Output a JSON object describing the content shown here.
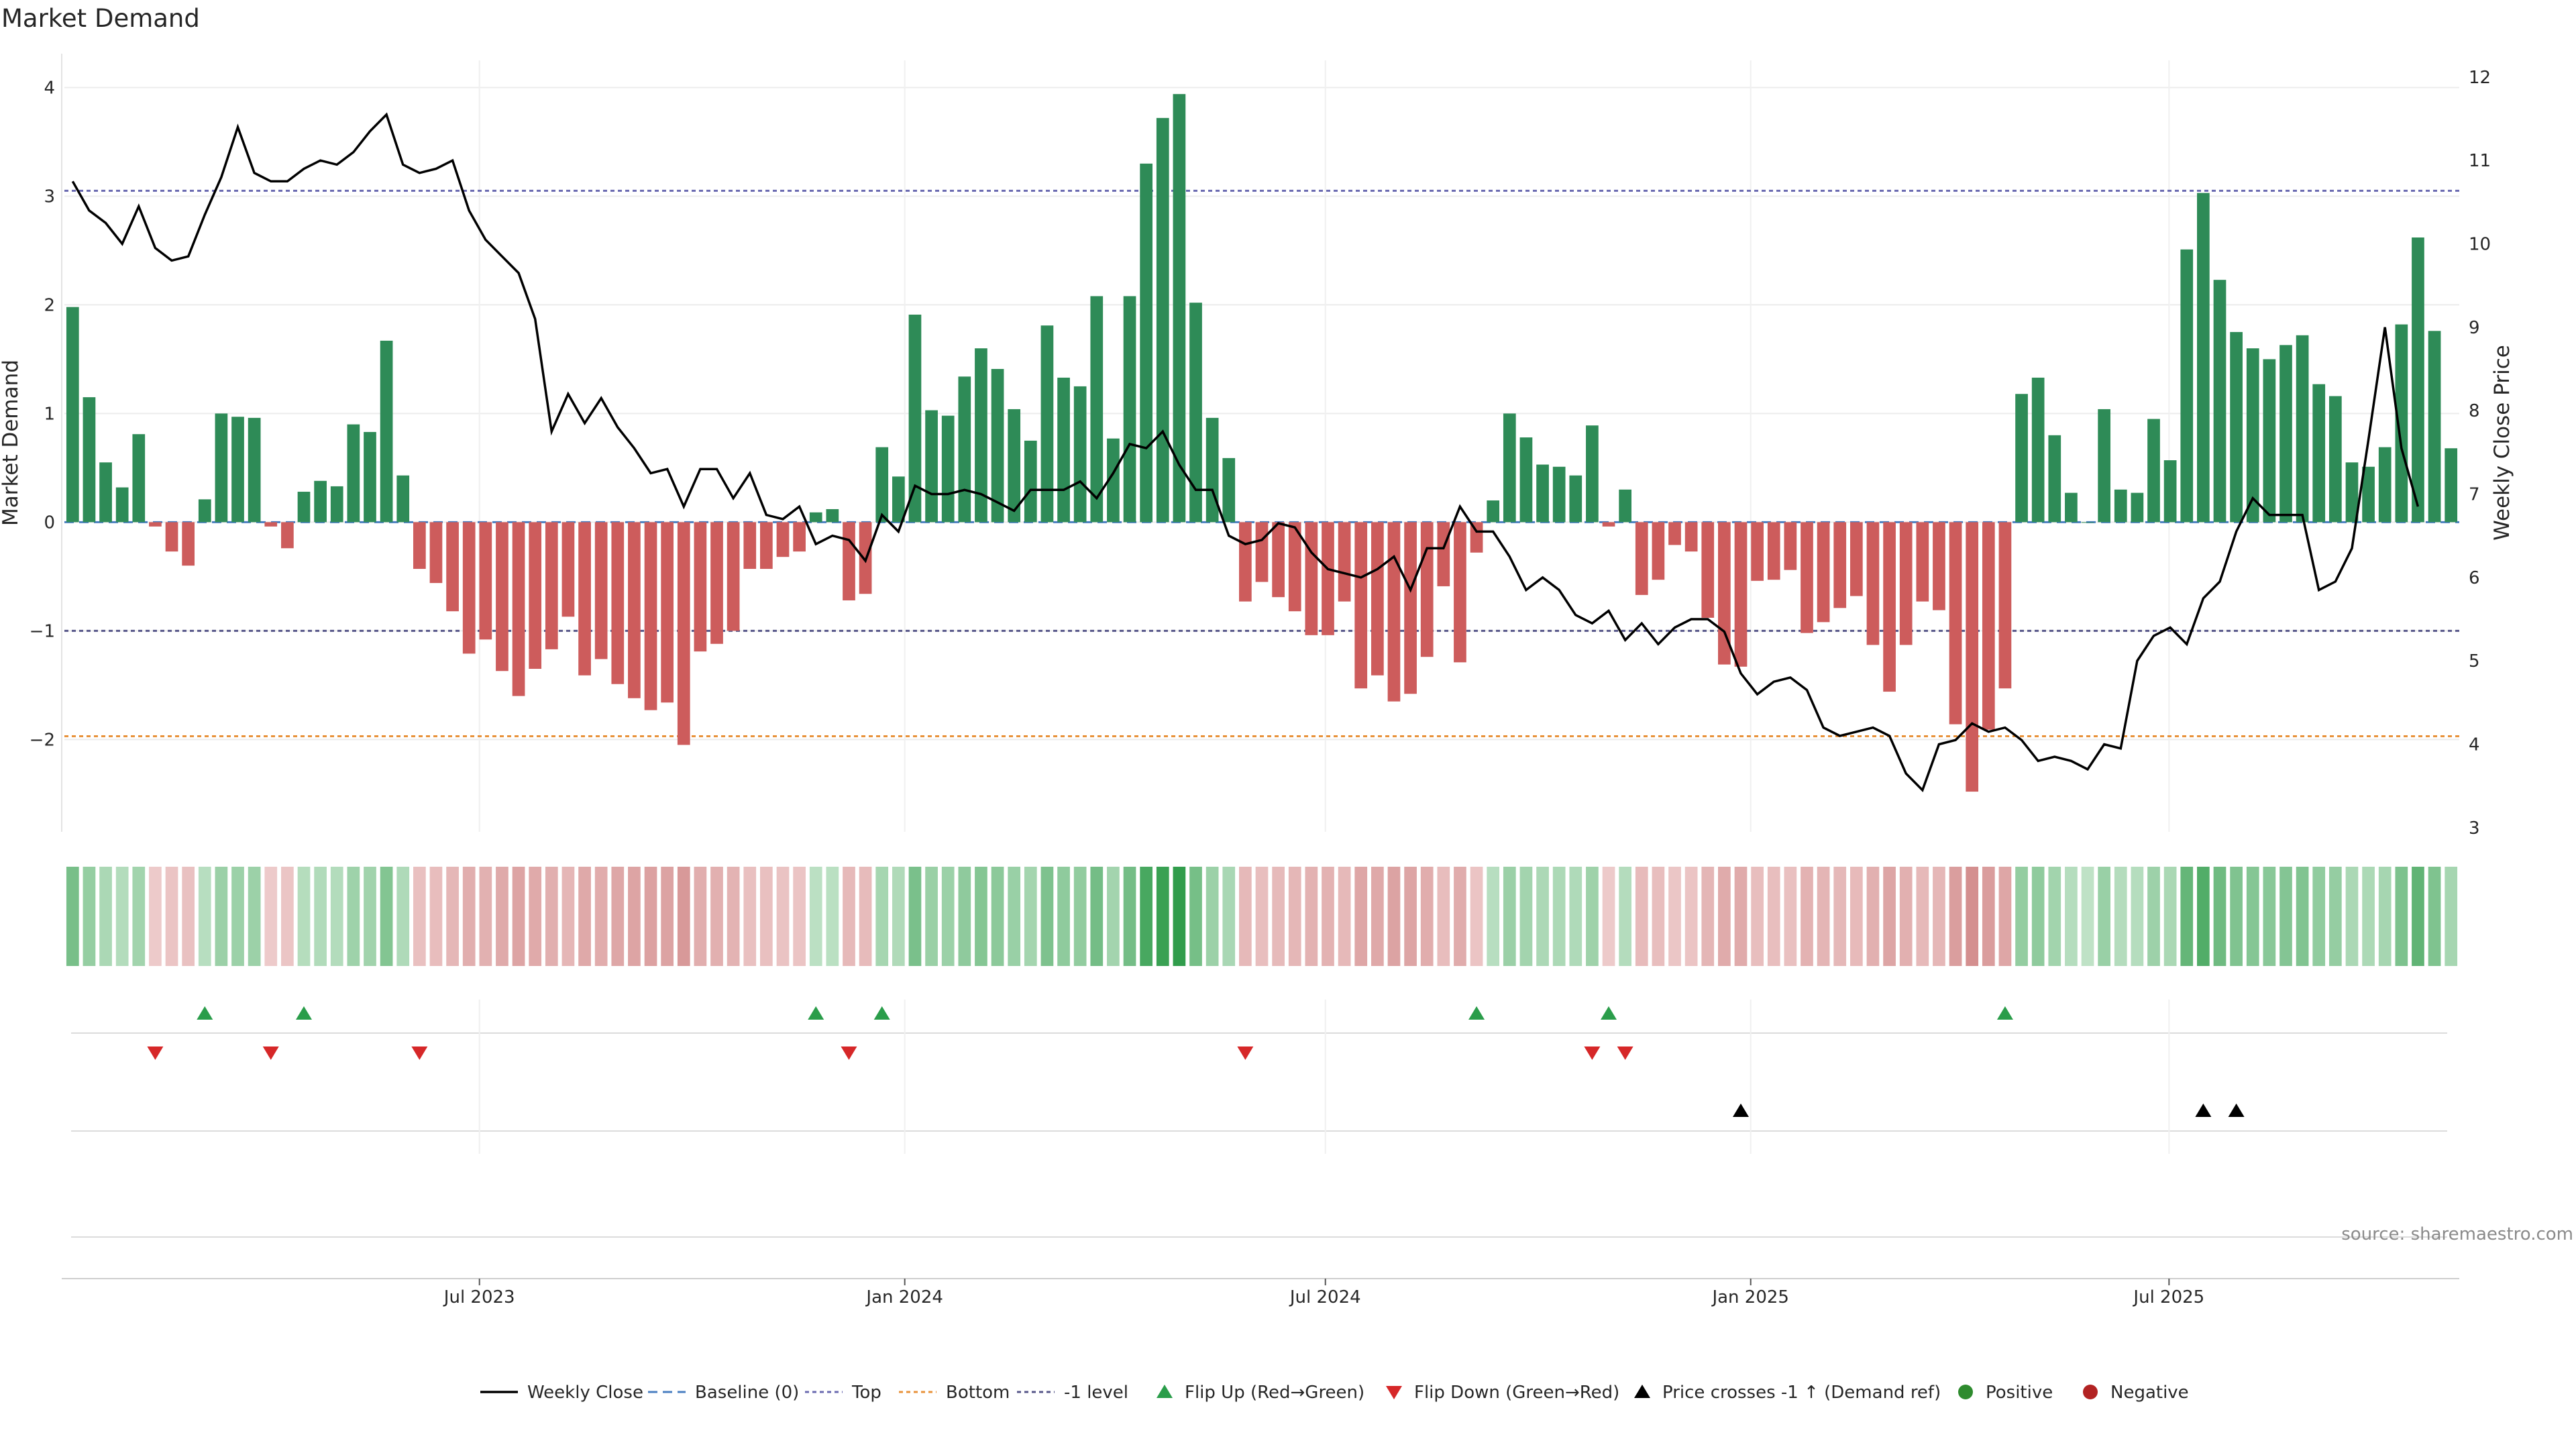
{
  "chart_data": {
    "type": "bar",
    "title": "Market Demand",
    "ylabel": "Market Demand",
    "y2label": "Weekly Close Price",
    "ylim": [
      -2.85,
      4.25
    ],
    "y2lim": [
      2.95,
      12.2
    ],
    "yticks": [
      4,
      3,
      2,
      1,
      0,
      -1,
      -2
    ],
    "y2ticks": [
      12,
      11,
      10,
      9,
      8,
      7,
      6,
      5,
      4,
      3
    ],
    "levels": {
      "top": 3.05,
      "bottom": -1.97,
      "minus_one": -1.0,
      "baseline": 0
    },
    "dates": {
      "first_week": "2023-01-06",
      "last_week": "2025-10-31",
      "x_ticks": [
        "Jul 2023",
        "Jan 2024",
        "Jul 2024",
        "Jan 2025",
        "Jul 2025"
      ]
    },
    "bar_colors": {
      "positive": "#2e8b57",
      "negative": "#cd5c5c"
    },
    "series": [
      {
        "name": "Market Demand",
        "values": [
          1.98,
          1.15,
          0.55,
          0.32,
          0.81,
          -0.04,
          -0.27,
          -0.4,
          0.21,
          1.0,
          0.97,
          0.96,
          -0.04,
          -0.24,
          0.28,
          0.38,
          0.33,
          0.9,
          0.83,
          1.67,
          0.43,
          -0.43,
          -0.56,
          -0.82,
          -1.21,
          -1.08,
          -1.37,
          -1.6,
          -1.35,
          -1.17,
          -0.87,
          -1.41,
          -1.26,
          -1.49,
          -1.62,
          -1.73,
          -1.66,
          -2.05,
          -1.19,
          -1.12,
          -1.0,
          -0.43,
          -0.43,
          -0.32,
          -0.27,
          0.09,
          0.12,
          -0.72,
          -0.66,
          0.69,
          0.42,
          1.91,
          1.03,
          0.98,
          1.34,
          1.6,
          1.41,
          1.04,
          0.75,
          1.81,
          1.33,
          1.25,
          2.08,
          0.77,
          2.08,
          3.3,
          3.72,
          3.94,
          2.02,
          0.96,
          0.59,
          -0.73,
          -0.55,
          -0.69,
          -0.82,
          -1.04,
          -1.04,
          -0.73,
          -1.53,
          -1.41,
          -1.65,
          -1.58,
          -1.24,
          -0.59,
          -1.29,
          -0.28,
          0.2,
          1.0,
          0.78,
          0.53,
          0.51,
          0.43,
          0.89,
          -0.04,
          0.3,
          -0.67,
          -0.53,
          -0.21,
          -0.27,
          -0.88,
          -1.31,
          -1.33,
          -0.54,
          -0.53,
          -0.44,
          -1.02,
          -0.92,
          -0.79,
          -0.68,
          -1.13,
          -1.56,
          -1.13,
          -0.73,
          -0.81,
          -1.86,
          -2.48,
          -1.91,
          -1.53,
          1.18,
          1.33,
          0.8,
          0.27,
          0.0,
          1.04,
          0.3,
          0.27,
          0.95,
          0.57,
          2.51,
          3.03,
          2.23,
          1.75,
          1.6,
          1.5,
          1.63,
          1.72,
          1.27,
          1.16,
          0.55,
          0.51,
          0.69,
          1.82,
          2.62,
          1.76,
          0.68
        ]
      },
      {
        "name": "Weekly Close",
        "values": [
          10.75,
          10.4,
          10.25,
          10.0,
          10.45,
          9.95,
          9.8,
          9.85,
          10.35,
          10.8,
          11.4,
          10.85,
          10.75,
          10.75,
          10.9,
          11.0,
          10.95,
          11.1,
          11.35,
          11.55,
          10.95,
          10.85,
          10.9,
          11.0,
          10.4,
          10.05,
          9.85,
          9.65,
          9.1,
          7.75,
          8.2,
          7.85,
          8.15,
          7.8,
          7.55,
          7.25,
          7.3,
          6.85,
          7.3,
          7.3,
          6.95,
          7.25,
          6.75,
          6.7,
          6.85,
          6.4,
          6.5,
          6.45,
          6.2,
          6.75,
          6.55,
          7.1,
          7.0,
          7.0,
          7.05,
          7.0,
          6.9,
          6.8,
          7.05,
          7.05,
          7.05,
          7.15,
          6.95,
          7.25,
          7.6,
          7.55,
          7.75,
          7.35,
          7.05,
          7.05,
          6.5,
          6.4,
          6.45,
          6.65,
          6.6,
          6.3,
          6.1,
          6.05,
          6.0,
          6.1,
          6.25,
          5.85,
          6.35,
          6.35,
          6.85,
          6.55,
          6.55,
          6.25,
          5.85,
          6.0,
          5.85,
          5.55,
          5.45,
          5.6,
          5.25,
          5.45,
          5.2,
          5.4,
          5.5,
          5.5,
          5.35,
          4.85,
          4.6,
          4.75,
          4.8,
          4.65,
          4.2,
          4.1,
          4.15,
          4.2,
          4.1,
          3.65,
          3.45,
          4.0,
          4.05,
          4.25,
          4.15,
          4.2,
          4.05,
          3.8,
          3.85,
          3.8,
          3.7,
          4.0,
          3.95,
          5.0,
          5.3,
          5.4,
          5.2,
          5.75,
          5.95,
          6.55,
          6.95,
          6.75,
          6.75,
          6.75,
          5.85,
          5.95,
          6.35,
          7.65,
          9.0,
          7.55,
          6.85
        ]
      }
    ],
    "flip_up_weeks": [
      8,
      14,
      45,
      49,
      85,
      93,
      117
    ],
    "flip_down_weeks": [
      5,
      12,
      21,
      47,
      71,
      92,
      94
    ],
    "price_cross_weeks": [
      101,
      129,
      131
    ]
  },
  "source": "source: sharemaestro.com",
  "legend": {
    "weekly_close": "Weekly Close",
    "baseline": "Baseline (0)",
    "top": "Top",
    "bottom": "Bottom",
    "minus_one": "-1 level",
    "flip_up": "Flip Up (Red→Green)",
    "flip_down": "Flip Down (Green→Red)",
    "price_cross": "Price crosses -1 ↑ (Demand ref)",
    "positive": "Positive",
    "negative": "Negative"
  },
  "colors": {
    "price": "#000000",
    "baseline": "#4a7fc1",
    "top": "#6a6ab0",
    "bottom": "#e8923a",
    "minus_one": "#555588",
    "flip_up": "#2a9d4a",
    "flip_down": "#d62728",
    "positive": "#2e8b2e",
    "negative": "#b22222"
  }
}
